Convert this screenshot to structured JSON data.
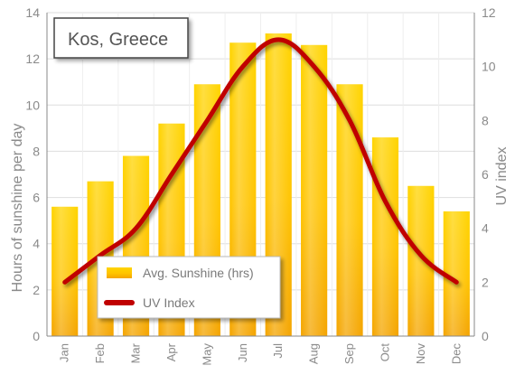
{
  "chart_data": {
    "type": "bar",
    "title": "Kos, Greece",
    "categories": [
      "Jan",
      "Feb",
      "Mar",
      "Apr",
      "May",
      "Jun",
      "Jul",
      "Aug",
      "Sep",
      "Oct",
      "Nov",
      "Dec"
    ],
    "series": [
      {
        "name": "Avg. Sunshine (hrs)",
        "type": "bar",
        "axis": "left",
        "values": [
          5.6,
          6.7,
          7.8,
          9.2,
          10.9,
          12.7,
          13.1,
          12.6,
          10.9,
          8.6,
          6.5,
          5.4
        ]
      },
      {
        "name": "UV Index",
        "type": "line",
        "axis": "right",
        "values": [
          2,
          3,
          4,
          6,
          8,
          10,
          11,
          10,
          8,
          5,
          3,
          2
        ]
      }
    ],
    "ylabel": "Hours of sunshine per day",
    "y2label": "UV index",
    "ylim": [
      0,
      14
    ],
    "y2lim": [
      0,
      12
    ],
    "yticks": [
      "0",
      "2",
      "4",
      "6",
      "8",
      "10",
      "12",
      "14"
    ],
    "y2ticks": [
      "0",
      "2",
      "4",
      "6",
      "8",
      "10",
      "12"
    ],
    "grid": true,
    "legend": "bottom-left",
    "colors": {
      "bar_top": "#ffd400",
      "bar_bottom": "#f4a400",
      "line": "#c00000",
      "grid": "#dedede"
    }
  }
}
